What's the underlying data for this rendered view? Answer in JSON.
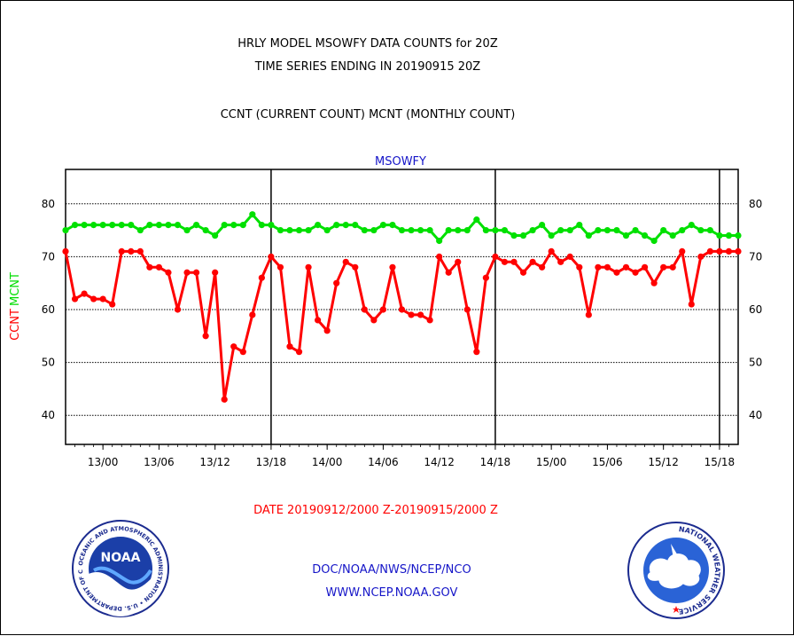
{
  "header": {
    "title_line1": "HRLY MODEL MSOWFY DATA COUNTS for 20Z",
    "title_line2": "TIME SERIES ENDING IN 20190915 20Z",
    "subtitle": "CCNT (CURRENT COUNT) MCNT (MONTHLY COUNT)"
  },
  "footer": {
    "date_range": "DATE 20190912/2000 Z-20190915/2000 Z",
    "org": "DOC/NOAA/NWS/NCEP/NCO",
    "url": "WWW.NCEP.NOAA.GOV"
  },
  "logos": {
    "left": {
      "label": "NOAA",
      "ring_text": "NATIONAL OCEANIC AND ATMOSPHERIC ADMINISTRATION • U.S. DEPARTMENT OF COMMERCE",
      "icon": "noaa-logo"
    },
    "right": {
      "ring_text": "NATIONAL WEATHER SERVICE",
      "icon": "nws-logo"
    }
  },
  "colors": {
    "ccnt": "#ff0000",
    "mcnt": "#00e000",
    "grid": "#000000",
    "label_blue": "#1515c8"
  },
  "chart_data": {
    "type": "line",
    "title": "MSOWFY",
    "ylabel_series": [
      "CCNT",
      "MCNT"
    ],
    "ylim": [
      34.5,
      86.5
    ],
    "yticks": [
      40,
      50,
      60,
      70,
      80
    ],
    "grid": "horizontal dotted",
    "x_tick_labels": [
      {
        "label": "13/00",
        "hour": 4
      },
      {
        "label": "13/06",
        "hour": 10
      },
      {
        "label": "13/12",
        "hour": 16
      },
      {
        "label": "13/18",
        "hour": 22
      },
      {
        "label": "14/00",
        "hour": 28
      },
      {
        "label": "14/06",
        "hour": 34
      },
      {
        "label": "14/12",
        "hour": 40
      },
      {
        "label": "14/18",
        "hour": 46
      },
      {
        "label": "15/00",
        "hour": 52
      },
      {
        "label": "15/06",
        "hour": 58
      },
      {
        "label": "15/12",
        "hour": 64
      },
      {
        "label": "15/18",
        "hour": 70
      }
    ],
    "day_dividers": [
      22,
      46,
      70
    ],
    "x_range": [
      0,
      72
    ],
    "series": [
      {
        "name": "CCNT",
        "color": "#ff0000",
        "values": [
          71,
          62,
          63,
          62,
          62,
          61,
          71,
          71,
          71,
          68,
          68,
          67,
          60,
          67,
          67,
          55,
          67,
          43,
          53,
          52,
          59,
          66,
          70,
          68,
          53,
          52,
          68,
          58,
          56,
          65,
          69,
          68,
          60,
          58,
          60,
          68,
          60,
          59,
          59,
          58,
          70,
          67,
          69,
          60,
          52,
          66,
          70,
          69,
          69,
          67,
          69,
          68,
          71,
          69,
          70,
          68,
          59,
          68,
          68,
          67,
          68,
          67,
          68,
          65,
          68,
          68,
          71,
          61,
          70,
          71,
          71,
          71,
          71
        ]
      },
      {
        "name": "MCNT",
        "color": "#00e000",
        "values": [
          75,
          76,
          76,
          76,
          76,
          76,
          76,
          76,
          75,
          76,
          76,
          76,
          76,
          75,
          76,
          75,
          74,
          76,
          76,
          76,
          78,
          76,
          76,
          75,
          75,
          75,
          75,
          76,
          75,
          76,
          76,
          76,
          75,
          75,
          76,
          76,
          75,
          75,
          75,
          75,
          73,
          75,
          75,
          75,
          77,
          75,
          75,
          75,
          74,
          74,
          75,
          76,
          74,
          75,
          75,
          76,
          74,
          75,
          75,
          75,
          74,
          75,
          74,
          73,
          75,
          74,
          75,
          76,
          75,
          75,
          74,
          74,
          74
        ]
      }
    ]
  }
}
